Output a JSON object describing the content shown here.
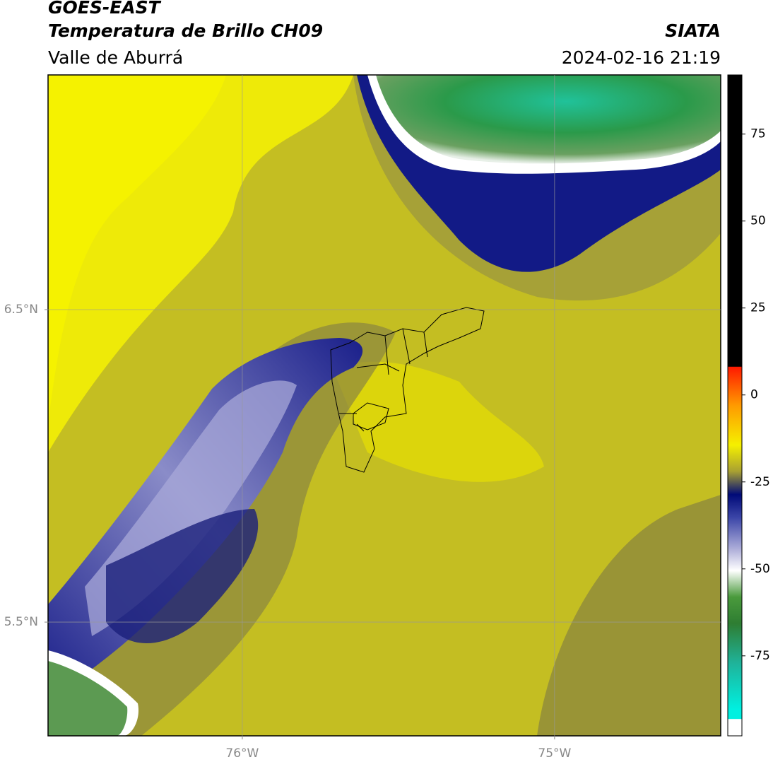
{
  "header": {
    "title": "GOES-EAST",
    "subtitle": "Temperatura de Brillo CH09",
    "region": "Valle de Aburrá",
    "agency": "SIATA",
    "timestamp": "2024-02-16 21:19"
  },
  "map": {
    "xlim": [
      -76.622,
      -74.468
    ],
    "ylim": [
      5.136,
      7.251
    ],
    "xticks": [
      {
        "value": -76,
        "label": "76°W"
      },
      {
        "value": -75,
        "label": "75°W"
      }
    ],
    "yticks": [
      {
        "value": 5.5,
        "label": "5.5°N"
      },
      {
        "value": 6.5,
        "label": "6.5°N"
      }
    ],
    "grid": true
  },
  "colorbar": {
    "lim": [
      -98,
      92
    ],
    "ticks": [
      -75,
      -50,
      -25,
      0,
      25,
      50,
      75
    ]
  }
}
